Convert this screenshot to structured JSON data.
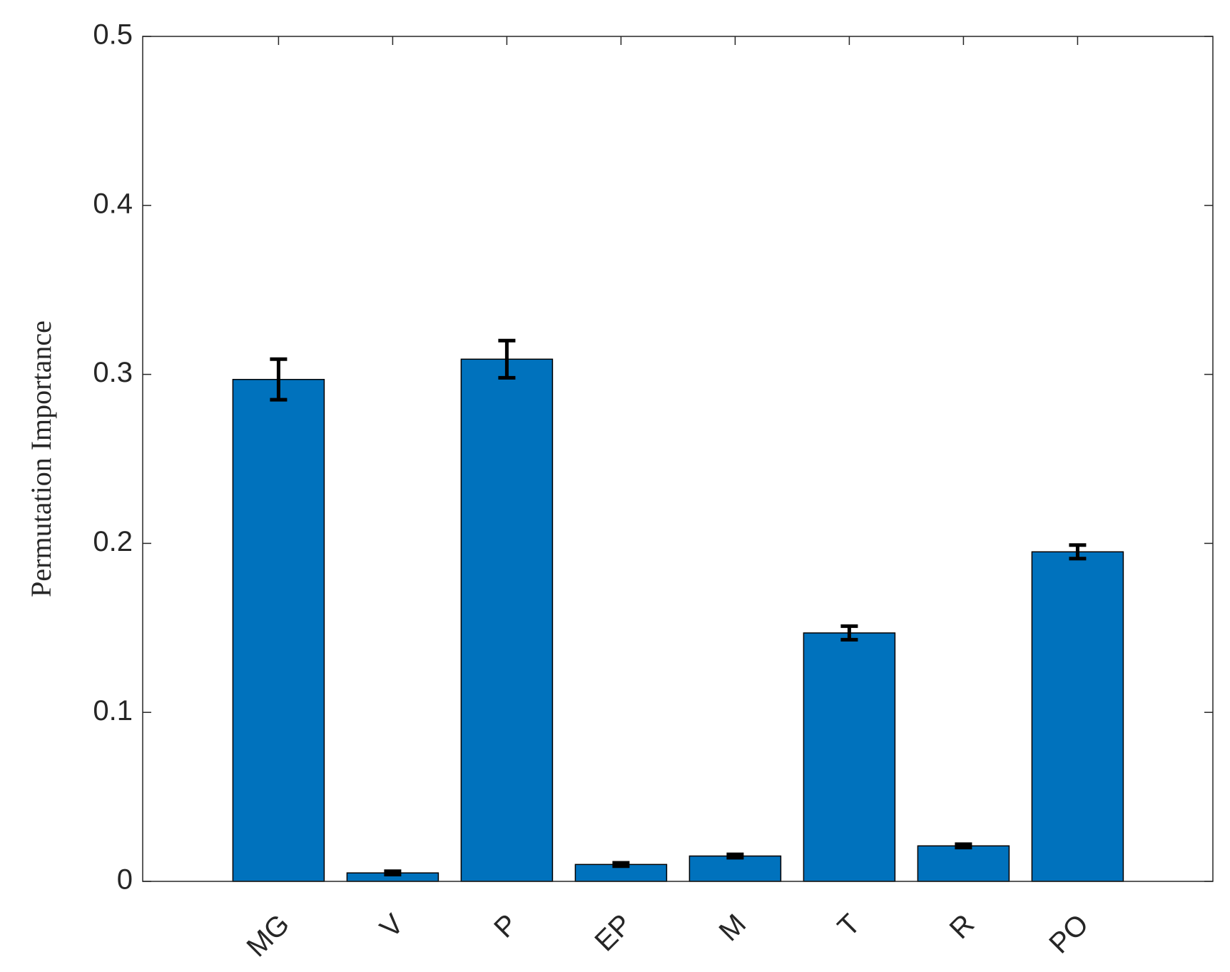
{
  "chart_data": {
    "type": "bar",
    "ylabel": "Permutation Importance",
    "categories": [
      "MG",
      "V",
      "P",
      "EP",
      "M",
      "T",
      "R",
      "PO"
    ],
    "values": [
      0.297,
      0.005,
      0.309,
      0.01,
      0.015,
      0.147,
      0.021,
      0.195
    ],
    "errors": [
      0.012,
      0.001,
      0.011,
      0.001,
      0.001,
      0.004,
      0.001,
      0.004
    ],
    "color": "#0072bd",
    "ylim": [
      0,
      0.5
    ],
    "yticks": [
      0,
      0.1,
      0.2,
      0.3,
      0.4,
      0.5
    ],
    "grid": false
  }
}
